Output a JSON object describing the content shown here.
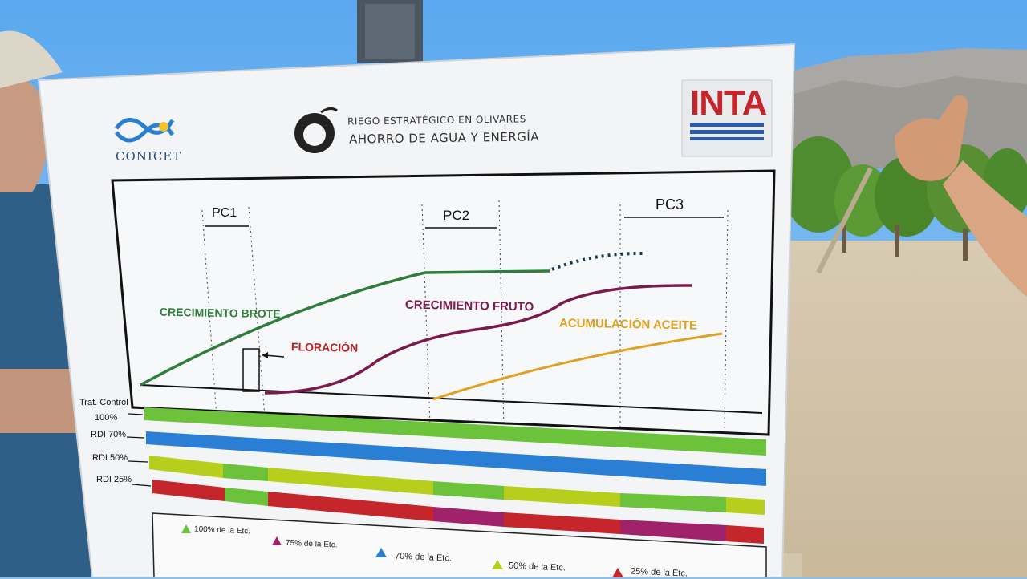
{
  "sign": {
    "conicet": "CONICET",
    "project_line1": "RIEGO ESTRATÉGICO EN OLIVARES",
    "project_line2": "AHORRO DE AGUA Y ENERGÍA",
    "inta": "INTA",
    "phases": [
      "PC1",
      "PC2",
      "PC3"
    ],
    "curves": {
      "brote": "CRECIMIENTO BROTE",
      "floracion": "FLORACIÓN",
      "fruto": "CRECIMIENTO FRUTO",
      "aceite": "ACUMULACIÓN ACEITE"
    },
    "treatments": [
      {
        "line1": "Trat. Control",
        "line2": "100%"
      },
      {
        "line1": "RDI 70%"
      },
      {
        "line1": "RDI 50%"
      },
      {
        "line1": "RDI 25%"
      }
    ],
    "legend": [
      {
        "label": "100% de la Etc.",
        "color": "#6cc23a"
      },
      {
        "label": "75% de la Etc.",
        "color": "#a0226a"
      },
      {
        "label": "70% de la Etc.",
        "color": "#2a7fd4"
      },
      {
        "label": "50% de la Etc.",
        "color": "#b7cf1c"
      },
      {
        "label": "25% de la Etc.",
        "color": "#c4262c"
      }
    ]
  },
  "colors": {
    "green": "#6cc23a",
    "blue": "#2a7fd4",
    "yellow_green": "#b7cf1c",
    "red": "#c4262c",
    "purple": "#a0226a",
    "brote_curve": "#2e7d3a",
    "fruto_curve": "#7a1a4a",
    "aceite_curve": "#e0a020"
  }
}
